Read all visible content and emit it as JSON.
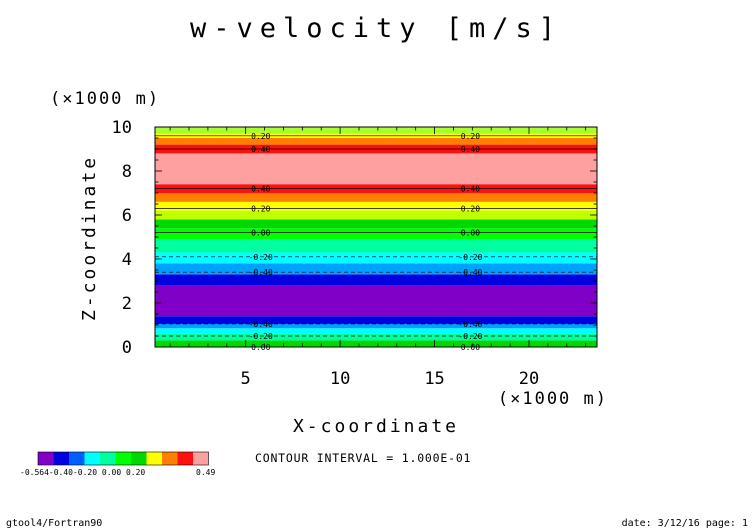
{
  "chart_data": {
    "type": "heatmap",
    "title": "w-velocity [m/s]",
    "xlabel": "X-coordinate",
    "ylabel": "Z-coordinate",
    "x_unit": "(×1000 m)",
    "y_unit": "(×1000 m)",
    "xlim": [
      0.2,
      23.6
    ],
    "ylim": [
      0,
      10
    ],
    "x_ticks": [
      "5",
      "10",
      "15",
      "20"
    ],
    "x_tick_values": [
      5,
      10,
      15,
      20
    ],
    "y_ticks": [
      "0",
      "2",
      "4",
      "6",
      "8",
      "10"
    ],
    "y_tick_values": [
      0,
      2,
      4,
      6,
      8,
      10
    ],
    "grid": false,
    "bands": [
      {
        "z0": 0.0,
        "z1": 0.3,
        "color": "#00d800"
      },
      {
        "z0": 0.3,
        "z1": 0.6,
        "color": "#00ffa0"
      },
      {
        "z0": 0.6,
        "z1": 0.85,
        "color": "#00ffff"
      },
      {
        "z0": 0.85,
        "z1": 1.05,
        "color": "#00a0ff"
      },
      {
        "z0": 1.05,
        "z1": 1.4,
        "color": "#0000e0"
      },
      {
        "z0": 1.4,
        "z1": 2.8,
        "color": "#8000c8"
      },
      {
        "z0": 2.8,
        "z1": 3.3,
        "color": "#0000e0"
      },
      {
        "z0": 3.3,
        "z1": 3.8,
        "color": "#00a0ff"
      },
      {
        "z0": 3.8,
        "z1": 4.3,
        "color": "#00ffff"
      },
      {
        "z0": 4.3,
        "z1": 4.9,
        "color": "#00ffa0"
      },
      {
        "z0": 4.9,
        "z1": 5.4,
        "color": "#00ff00"
      },
      {
        "z0": 5.4,
        "z1": 5.8,
        "color": "#00d800"
      },
      {
        "z0": 5.8,
        "z1": 6.2,
        "color": "#c0ff00"
      },
      {
        "z0": 6.2,
        "z1": 6.6,
        "color": "#ffff00"
      },
      {
        "z0": 6.6,
        "z1": 7.0,
        "color": "#ff8000"
      },
      {
        "z0": 7.0,
        "z1": 7.4,
        "color": "#ff1010"
      },
      {
        "z0": 7.4,
        "z1": 8.8,
        "color": "#ffa0a0"
      },
      {
        "z0": 8.8,
        "z1": 9.2,
        "color": "#ff1010"
      },
      {
        "z0": 9.2,
        "z1": 9.5,
        "color": "#ff8000"
      },
      {
        "z0": 9.5,
        "z1": 9.7,
        "color": "#ffff00"
      },
      {
        "z0": 9.7,
        "z1": 10.0,
        "color": "#a8ff30"
      }
    ],
    "contours": [
      {
        "z": 9.6,
        "label": "0.20",
        "dashed": false
      },
      {
        "z": 9.0,
        "label": "0.40",
        "dashed": false
      },
      {
        "z": 7.2,
        "label": "0.40",
        "dashed": false
      },
      {
        "z": 6.3,
        "label": "0.20",
        "dashed": false
      },
      {
        "z": 5.2,
        "label": "0.00",
        "dashed": false
      },
      {
        "z": 4.1,
        "label": "-0.20",
        "dashed": true
      },
      {
        "z": 3.4,
        "label": "-0.40",
        "dashed": true
      },
      {
        "z": 1.05,
        "label": "-0.40",
        "dashed": true
      },
      {
        "z": 0.5,
        "label": "-0.20",
        "dashed": true
      },
      {
        "z": 0.0,
        "label": "0.00",
        "dashed": false
      }
    ],
    "contour_label_x": [
      5.8,
      16.9
    ],
    "colorbar": {
      "colors": [
        "#8000c8",
        "#0000e0",
        "#0060ff",
        "#00ffff",
        "#00ffa0",
        "#00ff00",
        "#00d800",
        "#ffff00",
        "#ff8000",
        "#ff1010",
        "#ffa0a0"
      ],
      "labels": [
        "-0.564",
        "-0.40",
        "-0.20",
        "0.00",
        "0.20",
        "0.49"
      ],
      "min": -0.564,
      "max": 0.49
    },
    "contour_interval_text": "CONTOUR INTERVAL = 1.000E-01"
  },
  "footer": {
    "left": "gtool4/Fortran90",
    "right": "date: 3/12/16 page: 1"
  }
}
